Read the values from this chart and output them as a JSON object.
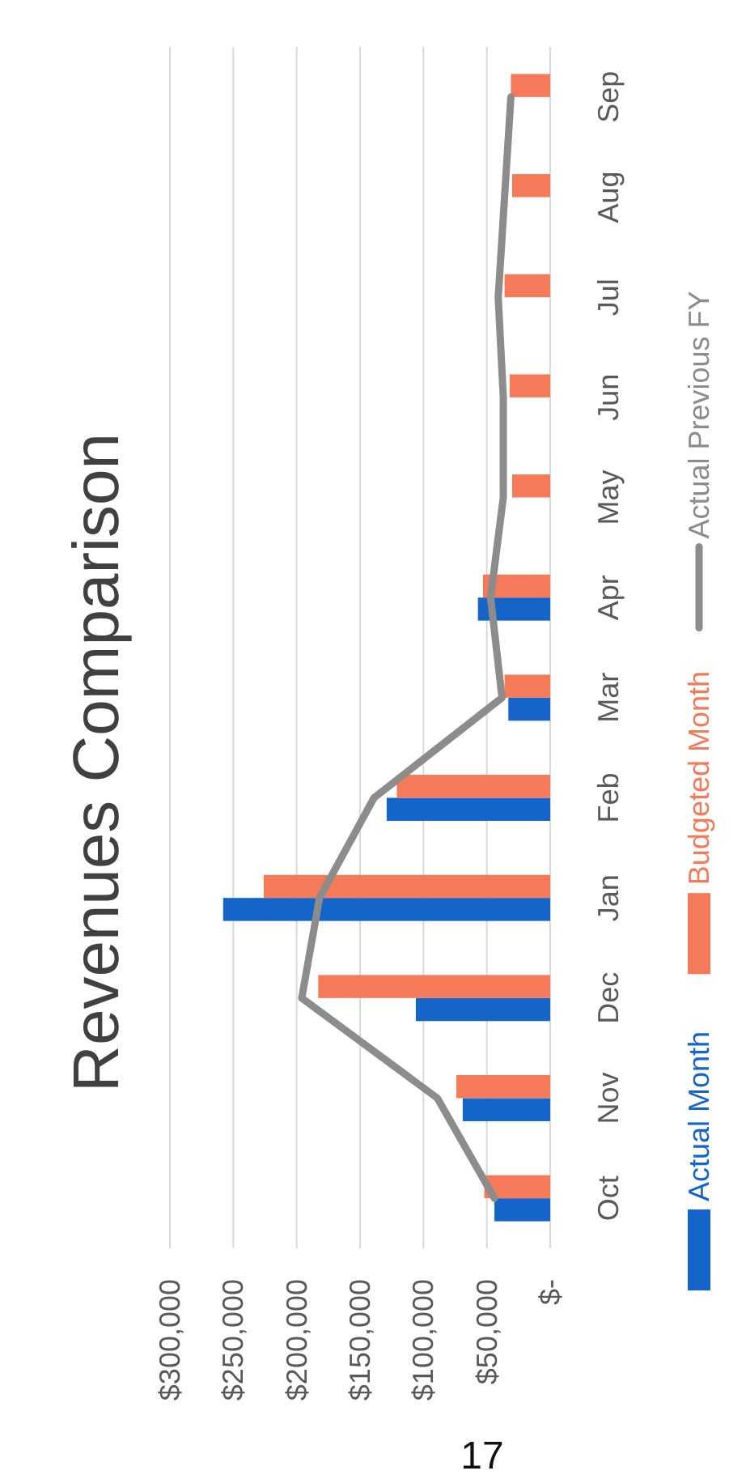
{
  "chart_data": {
    "type": "bar",
    "orientation": "horizontal",
    "title": "Revenues Comparison",
    "categories": [
      "Sep",
      "Aug",
      "Jul",
      "Jun",
      "May",
      "Apr",
      "Mar",
      "Feb",
      "Jan",
      "Dec",
      "Nov",
      "Oct"
    ],
    "series": [
      {
        "name": "Actual Month",
        "color": "#1565c8",
        "values": [
          null,
          null,
          null,
          null,
          null,
          57000,
          33000,
          129000,
          258000,
          106000,
          69000,
          44000
        ]
      },
      {
        "name": "Budgeted Month",
        "color": "#f47a5a",
        "values": [
          31000,
          30000,
          36000,
          32000,
          30000,
          53000,
          36000,
          121000,
          226000,
          183000,
          74000,
          52000
        ]
      },
      {
        "name": "Actual Previous FY",
        "type": "line",
        "color": "#8c8c8c",
        "values": [
          31000,
          36000,
          41000,
          37000,
          37000,
          47000,
          38000,
          139000,
          182000,
          196000,
          89000,
          44000
        ]
      }
    ],
    "xlim": [
      300000,
      0
    ],
    "xticks": [
      {
        "value": 300000,
        "label": "$300,000"
      },
      {
        "value": 250000,
        "label": "$250,000"
      },
      {
        "value": 200000,
        "label": "$200,000"
      },
      {
        "value": 150000,
        "label": "$150,000"
      },
      {
        "value": 100000,
        "label": "$100,000"
      },
      {
        "value": 50000,
        "label": "$50,000"
      },
      {
        "value": 0,
        "label": "$-"
      }
    ],
    "grid": "x",
    "legend": "right",
    "annotations": [
      "17"
    ]
  }
}
